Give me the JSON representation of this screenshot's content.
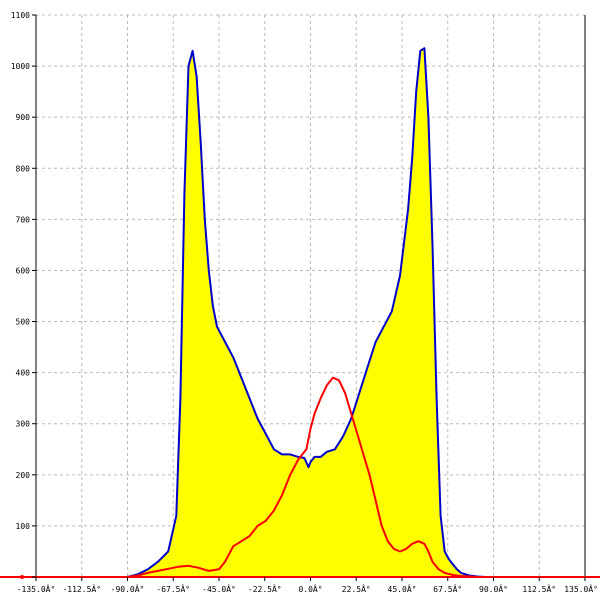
{
  "chart_data": {
    "type": "area",
    "title": "",
    "xlabel": "",
    "ylabel": "",
    "xlim": [
      -135,
      135
    ],
    "ylim": [
      0,
      1100
    ],
    "grid": true,
    "x_ticks": [
      -135,
      -112.5,
      -90,
      -67.5,
      -45,
      -22.5,
      0,
      22.5,
      45,
      67.5,
      90,
      112.5,
      135
    ],
    "x_tick_labels": [
      "-135.0Â°",
      "-112.5Â°",
      "-90.0Â°",
      "-67.5Â°",
      "-45.0Â°",
      "-22.5Â°",
      "0.0Â°",
      "22.5Â°",
      "45.0Â°",
      "67.5Â°",
      "90.0Â°",
      "112.5Â°",
      "135.0Â°"
    ],
    "y_ticks": [
      0,
      100,
      200,
      300,
      400,
      500,
      600,
      700,
      800,
      900,
      1000,
      1100
    ],
    "y_tick_labels": [
      "0",
      "100",
      "200",
      "300",
      "400",
      "500",
      "600",
      "700",
      "800",
      "900",
      "1000",
      "1100"
    ],
    "series": [
      {
        "color": "#0000cc",
        "fill": "#ffff00",
        "x": [
          -135,
          -90,
          -85,
          -80,
          -75,
          -70,
          -66,
          -64,
          -62,
          -60,
          -58,
          -56,
          -54,
          -52,
          -50,
          -48,
          -46,
          -44,
          -42,
          -38,
          -34,
          -30,
          -26,
          -22,
          -18,
          -14,
          -10,
          -6,
          -3,
          -1,
          0,
          2,
          5,
          8,
          12,
          16,
          20,
          24,
          28,
          32,
          36,
          40,
          44,
          48,
          50,
          52,
          54,
          56,
          58,
          60,
          62,
          64,
          66,
          68,
          70,
          72,
          74,
          78,
          82,
          86,
          90,
          135
        ],
        "y": [
          0,
          0,
          5,
          15,
          30,
          50,
          120,
          350,
          750,
          1000,
          1030,
          980,
          850,
          700,
          600,
          530,
          490,
          475,
          460,
          430,
          390,
          350,
          310,
          280,
          250,
          240,
          240,
          235,
          233,
          215,
          225,
          235,
          235,
          245,
          250,
          275,
          310,
          360,
          410,
          460,
          490,
          520,
          590,
          720,
          820,
          950,
          1030,
          1035,
          900,
          650,
          350,
          120,
          50,
          35,
          25,
          15,
          8,
          3,
          1,
          0,
          0,
          0
        ]
      },
      {
        "color": "#ff0000",
        "x": [
          -135,
          -90,
          -85,
          -80,
          -75,
          -70,
          -65,
          -60,
          -55,
          -50,
          -45,
          -42,
          -38,
          -34,
          -30,
          -26,
          -22,
          -18,
          -14,
          -10,
          -6,
          -2,
          0,
          2,
          5,
          8,
          11,
          14,
          17,
          20,
          23,
          26,
          29,
          32,
          35,
          38,
          41,
          44,
          47,
          50,
          53,
          56,
          58,
          60,
          63,
          66,
          70,
          74,
          78,
          82,
          86,
          90,
          135
        ],
        "y": [
          0,
          0,
          3,
          8,
          12,
          16,
          20,
          22,
          18,
          12,
          15,
          30,
          60,
          70,
          80,
          100,
          110,
          130,
          160,
          200,
          230,
          250,
          290,
          320,
          350,
          375,
          390,
          385,
          360,
          320,
          280,
          240,
          200,
          150,
          100,
          70,
          55,
          50,
          55,
          65,
          70,
          65,
          50,
          30,
          15,
          8,
          4,
          2,
          1,
          0,
          0,
          0,
          0
        ]
      }
    ]
  }
}
